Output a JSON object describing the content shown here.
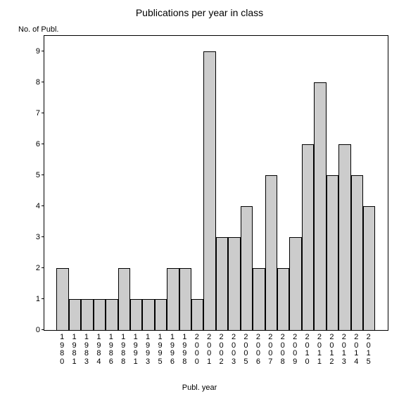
{
  "chart": {
    "type": "bar",
    "title": "Publications per year in class",
    "title_fontsize": 14,
    "ylabel": "No. of Publ.",
    "xlabel": "Publ. year",
    "label_fontsize": 11,
    "background_color": "#ffffff",
    "bar_default_color": "#cccccc",
    "bar_border_color": "#000000",
    "axis_color": "#000000",
    "tick_fontsize": 11,
    "ylim_min": 0,
    "ylim_max": 9.5,
    "yticks": [
      0,
      1,
      2,
      3,
      4,
      5,
      6,
      7,
      8,
      9
    ],
    "bar_width_ratio": 1.0,
    "slot_count": 28,
    "left_pad_slots": 1,
    "right_pad_slots": 1,
    "data": [
      {
        "year": "1980",
        "value": 2
      },
      {
        "year": "1981",
        "value": 1
      },
      {
        "year": "1983",
        "value": 1
      },
      {
        "year": "1984",
        "value": 1
      },
      {
        "year": "1986",
        "value": 1
      },
      {
        "year": "1988",
        "value": 2
      },
      {
        "year": "1991",
        "value": 1
      },
      {
        "year": "1993",
        "value": 1
      },
      {
        "year": "1995",
        "value": 1
      },
      {
        "year": "1996",
        "value": 2
      },
      {
        "year": "1998",
        "value": 2
      },
      {
        "year": "2000",
        "value": 1
      },
      {
        "year": "2001",
        "value": 9
      },
      {
        "year": "2002",
        "value": 3
      },
      {
        "year": "2003",
        "value": 3
      },
      {
        "year": "2005",
        "value": 4
      },
      {
        "year": "2006",
        "value": 2
      },
      {
        "year": "2007",
        "value": 5
      },
      {
        "year": "2008",
        "value": 2
      },
      {
        "year": "2009",
        "value": 3
      },
      {
        "year": "2010",
        "value": 6
      },
      {
        "year": "2011",
        "value": 8
      },
      {
        "year": "2012",
        "value": 5
      },
      {
        "year": "2013",
        "value": 6
      },
      {
        "year": "2014",
        "value": 5
      },
      {
        "year": "2015",
        "value": 4
      }
    ]
  }
}
